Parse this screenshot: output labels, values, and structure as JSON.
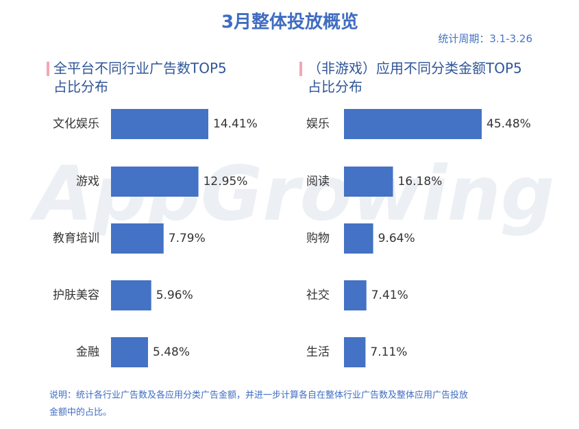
{
  "title": "3月整体投放概览",
  "period": "统计周期：3.1-3.26",
  "watermark": "AppGrowing",
  "note": [
    "说明：统计各行业广告数及各应用分类广告金额，并进一步计算各自在整体行业广告数及整体应用广告投放",
    "金额中的占比。"
  ],
  "chart_data": [
    {
      "type": "hbar",
      "title": [
        "全平台不同行业广告数TOP5",
        "占比分布"
      ],
      "categories": [
        "文化娱乐",
        "游戏",
        "教育培训",
        "护肤美容",
        "金融"
      ],
      "values": [
        14.41,
        12.95,
        7.79,
        5.96,
        5.48
      ],
      "value_labels": [
        "14.41%",
        "12.95%",
        "7.79%",
        "5.96%",
        "5.48%"
      ],
      "color": "#4472c4"
    },
    {
      "type": "hbar",
      "title": [
        "（非游戏）应用不同分类金额TOP5",
        "占比分布"
      ],
      "categories": [
        "娱乐",
        "阅读",
        "购物",
        "社交",
        "生活"
      ],
      "values": [
        45.48,
        16.18,
        9.64,
        7.41,
        7.11
      ],
      "value_labels": [
        "45.48%",
        "16.18%",
        "9.64%",
        "7.41%",
        "7.11%"
      ],
      "color": "#4472c4"
    }
  ]
}
